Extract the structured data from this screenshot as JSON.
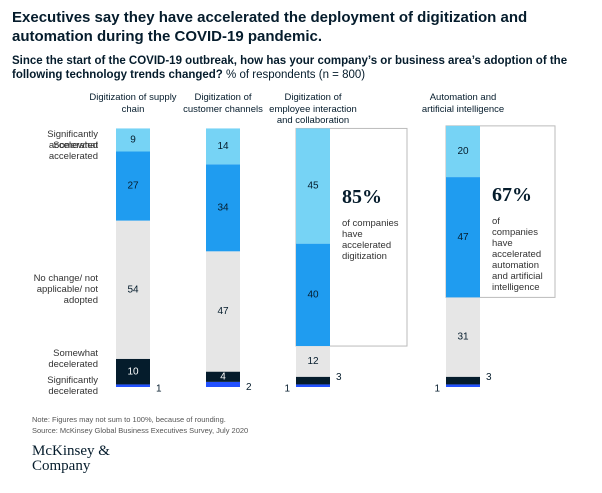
{
  "chart_data": {
    "type": "stacked_bar",
    "title": "Executives say they have accelerated the deployment of digitization and automation during the COVID-19 pandemic.",
    "subtitle": "Since the start of the COVID-19 outbreak, how has your company’s or business area’s adoption of the following technology trends changed?",
    "subtitle_note": "% of respondents (n = 800)",
    "categories": [
      "Digitization of supply chain",
      "Digitization of customer channels",
      "Digitization of employee interaction and collaboration",
      "Automation and artificial intelligence"
    ],
    "series": [
      {
        "name": "Significantly decelerated",
        "color": "#2251ff",
        "values": [
          1,
          2,
          1,
          1
        ]
      },
      {
        "name": "Somewhat decelerated",
        "color": "#051c2c",
        "values": [
          10,
          4,
          3,
          3
        ]
      },
      {
        "name": "No change/ not applicable/ not adopted",
        "color": "#e6e6e6",
        "values": [
          54,
          47,
          12,
          31
        ]
      },
      {
        "name": "Somewhat accelerated",
        "color": "#1f9cf0",
        "values": [
          27,
          34,
          40,
          47
        ]
      },
      {
        "name": "Significantly accelerated",
        "color": "#76d3f5",
        "values": [
          9,
          14,
          45,
          20
        ]
      }
    ],
    "annotations": [
      {
        "value": "85%",
        "text": "of companies have accelerated digitization"
      },
      {
        "value": "67%",
        "text": "of companies have accelerated automation and artificial intelligence"
      }
    ],
    "note": "Note: Figures may not sum to 100%, because of rounding.",
    "source": "Source: McKinsey Global Business Executives Survey, July 2020",
    "logo": "McKinsey & Company"
  }
}
